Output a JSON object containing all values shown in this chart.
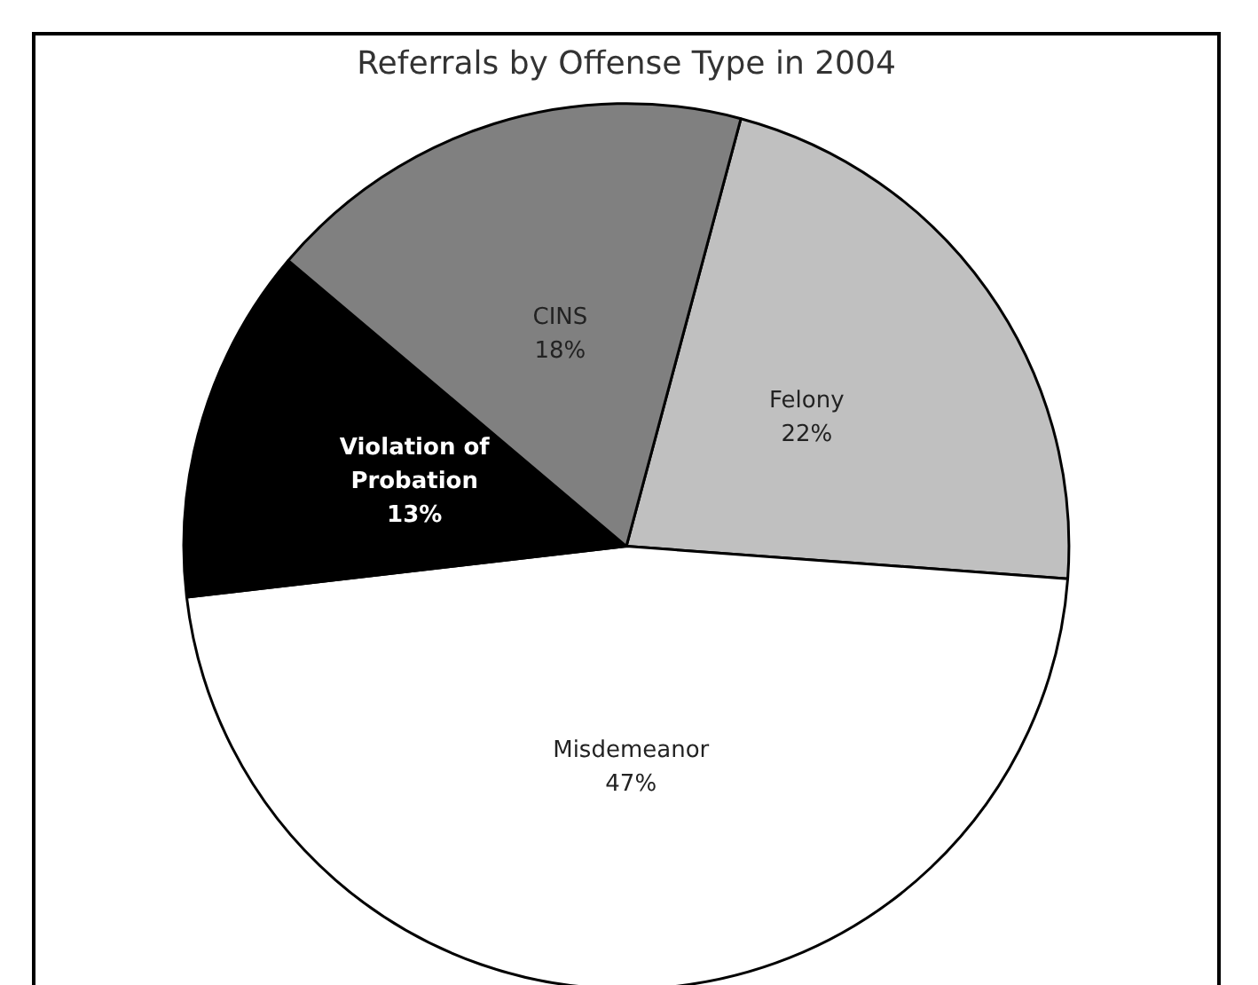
{
  "chart_data": {
    "type": "pie",
    "title": "Referrals by Offense Type in 2004",
    "categories": [
      "Felony",
      "Misdemeanor",
      "Violation of Probation",
      "CINS"
    ],
    "values": [
      22,
      47,
      13,
      18
    ],
    "colors": [
      "#c0c0c0",
      "#ffffff",
      "#000000",
      "#808080"
    ],
    "value_labels": [
      "22%",
      "47%",
      "13%",
      "18%"
    ],
    "legend": false
  }
}
